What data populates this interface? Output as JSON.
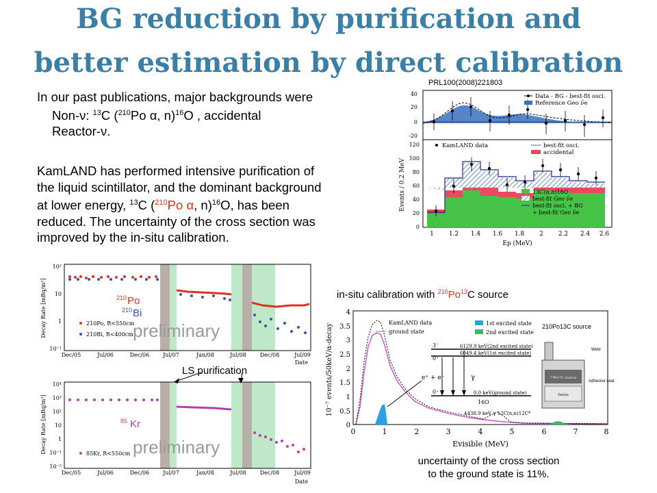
{
  "title": {
    "line1": "BG reduction by purification and",
    "line2": "better estimation by direct calibration"
  },
  "text1": {
    "line1": "In our past publications, major backgrounds were",
    "non_nu_prefix": "Non-ν: ",
    "c13": "13",
    "c_label": "C (",
    "po210": "210",
    "po_alpha": "Po α, n)",
    "o16": "16",
    "o_label": "O , accidental",
    "line3": "Reactor-ν."
  },
  "text2": {
    "line1": "KamLAND has performed intensive purification of",
    "line2": "the liquid scintillator, and the dominant background",
    "line3_a": "at lower energy, ",
    "line3_c13": "13",
    "line3_b": "C (",
    "line3_po210": "210",
    "line3_po": "Po α",
    "line3_c": ", n)",
    "line3_o16": "16",
    "line3_d": "O, has been",
    "line4": "reduced. The uncertainty of the cross section was",
    "line5": "improved by the in-situ calibration."
  },
  "prl": {
    "ref": "PRL100(2008)221803",
    "ylabel": "Events / 0.2 MeV",
    "xlabel": "Ep (MeV)",
    "top_legend": [
      "Data - BG - best-fit osci.",
      "Reference Geo ν̄e"
    ],
    "top_yticks": [
      "40",
      "20",
      "0",
      "-20"
    ],
    "bottom_yticks": [
      "120",
      "100",
      "80",
      "60",
      "40",
      "20",
      "0"
    ],
    "xticks": [
      "1",
      "1.2",
      "1.4",
      "1.6",
      "1.8",
      "2",
      "2.2",
      "2.4",
      "2.6"
    ],
    "legend_left": "KamLAND data",
    "legend_right": [
      "best-fit osci.",
      "accidental"
    ],
    "legend_lower": [
      "13C(α,n)16O",
      "best-fit Geo ν̄e",
      "best-fit osci. + BG",
      "+ best-fit Geo ν̄e"
    ]
  },
  "decay": {
    "ylabel_top": "Decay Rate [mBq/m³]",
    "ylabel_bottom": "Decay Rate [mBq/m³]",
    "top_yticks": [
      "10²",
      "10",
      "1",
      "10⁻¹"
    ],
    "bottom_yticks": [
      "10⁴",
      "10³",
      "10²",
      "10",
      "1",
      "10⁻¹",
      "10⁻²"
    ],
    "xticks": [
      "Dec/05",
      "Jul/06",
      "Dec/06",
      "Jul/07",
      "Jan/08",
      "Jul/08",
      "Dec/08",
      "Jul/09"
    ],
    "xlabel": "Date",
    "po_sup": "210",
    "po_label": "Po",
    "bi_sup": "210",
    "bi_label": "Bi",
    "preliminary": "preliminary",
    "legend_po": "210Po, R<550cm",
    "legend_bi": "210Bi, R<400cm",
    "ls_purification": "LS purification",
    "kr_sup": "85",
    "kr_label": "Kr",
    "legend_kr": "85Kr, R<550cm"
  },
  "calib": {
    "title_a": "in-situ calibration with ",
    "title_po": "210",
    "title_po_label": "Po",
    "title_c": "13",
    "title_b": "C source",
    "ylabel": "10⁻⁷ events/50keV/α-decay",
    "xlabel": "Evisible (MeV)",
    "yticks": [
      "0",
      "0.5",
      "1",
      "1.5",
      "2",
      "2.5",
      "3",
      "3.5",
      "4"
    ],
    "xticks": [
      "0",
      "1",
      "2",
      "3",
      "4",
      "5",
      "6",
      "7",
      "8"
    ],
    "legend": [
      "KamLAND data",
      "ground state",
      "1st excited state",
      "2nd excited state"
    ],
    "source_label": "210Po13C source",
    "levels": [
      "6129.9 keV(2nd excited state)",
      "6049.4 keV(1st excited state)",
      "0.0 keV(ground state)"
    ],
    "level_spins": [
      "3⁻",
      "0⁺",
      "0⁺"
    ],
    "o16_label": "16O",
    "c12_label": "4438.9 keV  γ  12C(n,n)12C*",
    "ee_label": "e⁺ + e⁻",
    "gamma_label": "γ",
    "source_parts": [
      "Weld",
      "Adhesive seal",
      "²¹⁰Po¹³C source",
      "Delrin"
    ],
    "caption1": "uncertainty of the cross section",
    "caption2": "to the ground state is 11%."
  },
  "colors": {
    "title": "#3b7fa6",
    "po_red": "#e0301e",
    "bi_blue": "#2f56b0",
    "kr_magenta": "#b040b0",
    "green_fill": "#46c346",
    "blue_fill": "#2f7fd0",
    "band_gray": "#b8b0a8",
    "band_green": "#bfe8c8"
  }
}
